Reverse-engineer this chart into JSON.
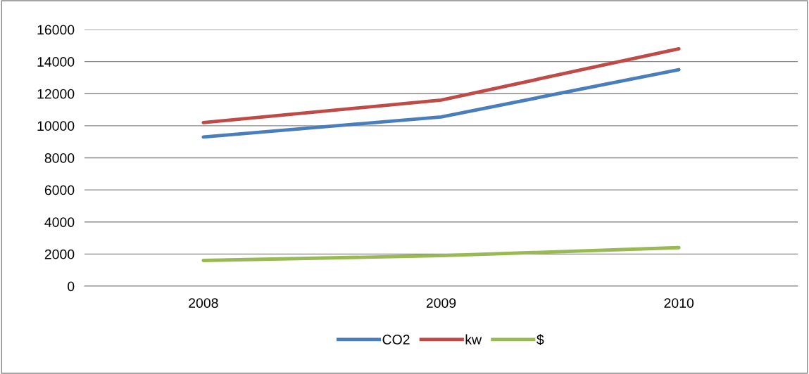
{
  "chart_data": {
    "type": "line",
    "categories": [
      "2008",
      "2009",
      "2010"
    ],
    "series": [
      {
        "name": "CO2",
        "color": "#4a7ebb",
        "values": [
          9300,
          10550,
          13500
        ]
      },
      {
        "name": "kw",
        "color": "#be4b48",
        "values": [
          10200,
          11600,
          14800
        ]
      },
      {
        "name": "$",
        "color": "#98b954",
        "values": [
          1600,
          1900,
          2400
        ]
      }
    ],
    "ylim": [
      0,
      16000
    ],
    "yticks": [
      0,
      2000,
      4000,
      6000,
      8000,
      10000,
      12000,
      14000,
      16000
    ],
    "grid": "y",
    "legend": "bottom",
    "marker": "none",
    "line_style": "solid"
  }
}
